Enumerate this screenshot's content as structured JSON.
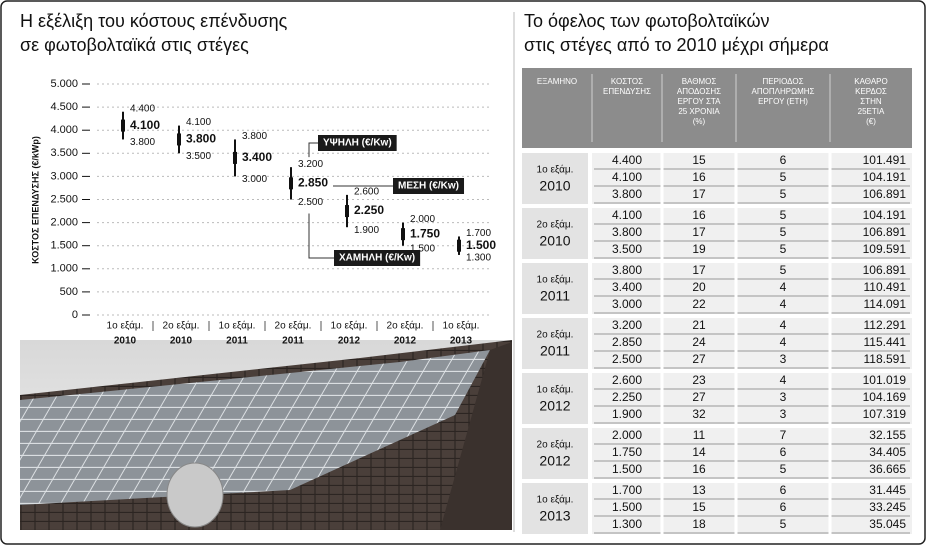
{
  "chart_data": {
    "type": "range",
    "title": [
      "Η εξέλιξη του κόστους επένδυσης",
      "σε φωτοβολταϊκά στις στέγες"
    ],
    "y_label": "ΚΟΣΤΟΣ ΕΠΕΝΔΥΣΗΣ (€/kWp)",
    "categories": [
      [
        "1ο εξάμ.",
        "2010"
      ],
      [
        "2ο εξάμ.",
        "2010"
      ],
      [
        "1ο εξάμ.",
        "2011"
      ],
      [
        "2ο εξάμ.",
        "2011"
      ],
      [
        "1ο εξάμ.",
        "2012"
      ],
      [
        "2ο εξάμ.",
        "2012"
      ],
      [
        "1ο εξάμ.",
        "2013"
      ]
    ],
    "series": [
      {
        "name": "ΥΨΗΛΗ (€/Kw)",
        "color": "#111111",
        "values": [
          4400,
          4100,
          3800,
          3200,
          2600,
          2000,
          1700
        ],
        "value_labels": [
          "4.400",
          "4.100",
          "3.800",
          "3.200",
          "2.600",
          "2.000",
          "1.700"
        ]
      },
      {
        "name": "ΜΕΣΗ (€/Kw)",
        "color": "#111111",
        "values": [
          4100,
          3800,
          3400,
          2850,
          2250,
          1750,
          1500
        ],
        "value_labels": [
          "4.100",
          "3.800",
          "3.400",
          "2.850",
          "2.250",
          "1.750",
          "1.500"
        ]
      },
      {
        "name": "ΧΑΜΗΛΗ (€/Kw)",
        "color": "#111111",
        "values": [
          3800,
          3500,
          3000,
          2500,
          1900,
          1500,
          1300
        ],
        "value_labels": [
          "3.800",
          "3.500",
          "3.000",
          "2.500",
          "1.900",
          "1.500",
          "1.300"
        ]
      }
    ],
    "ylim": [
      0,
      5000
    ],
    "yticks": [
      0,
      {
        "value": 500,
        "label": "500"
      },
      {
        "value": 1000,
        "label": "1.000"
      },
      {
        "value": 1500,
        "label": "1.500"
      },
      {
        "value": 2000,
        "label": "2.000"
      },
      {
        "value": 2500,
        "label": "2.500"
      },
      {
        "value": 3000,
        "label": "3.000"
      },
      {
        "value": 3500,
        "label": "3.500"
      },
      {
        "value": 4000,
        "label": "4.000"
      },
      {
        "value": 4500,
        "label": "4.500"
      },
      {
        "value": 5000,
        "label": "5.000"
      }
    ],
    "grid": true
  },
  "table": {
    "title": [
      "Το όφελος των φωτοβολταϊκών",
      "στις στέγες από το 2010 μέχρι σήμερα"
    ],
    "headers": [
      [
        "ΕΞΑΜΗΝΟ"
      ],
      [
        "ΚΟΣΤΟΣ",
        "ΕΠΕΝΔΥΣΗΣ"
      ],
      [
        "ΒΑΘΜΟΣ",
        "ΑΠΟΔΟΣΗΣ",
        "ΕΡΓΟΥ ΣΤΑ",
        "25 ΧΡΟΝΙΑ",
        "(%)"
      ],
      [
        "ΠΕΡΙΟΔΟΣ",
        "ΑΠΟΠΛΗΡΩΜΗΣ",
        "ΕΡΓΟΥ (ΕΤΗ)"
      ],
      [
        "ΚΑΘΑΡΟ",
        "ΚΕΡΔΟΣ",
        "ΣΤΗΝ",
        "25ΕΤΙΑ",
        "(€)"
      ]
    ],
    "groups": [
      {
        "label": [
          "1ο εξάμ.",
          "2010"
        ],
        "rows": [
          [
            "4.400",
            "15",
            "6",
            "101.491"
          ],
          [
            "4.100",
            "16",
            "5",
            "104.191"
          ],
          [
            "3.800",
            "17",
            "5",
            "106.891"
          ]
        ]
      },
      {
        "label": [
          "2ο εξάμ.",
          "2010"
        ],
        "rows": [
          [
            "4.100",
            "16",
            "5",
            "104.191"
          ],
          [
            "3.800",
            "17",
            "5",
            "106.891"
          ],
          [
            "3.500",
            "19",
            "5",
            "109.591"
          ]
        ]
      },
      {
        "label": [
          "1ο εξάμ.",
          "2011"
        ],
        "rows": [
          [
            "3.800",
            "17",
            "5",
            "106.891"
          ],
          [
            "3.400",
            "20",
            "4",
            "110.491"
          ],
          [
            "3.000",
            "22",
            "4",
            "114.091"
          ]
        ]
      },
      {
        "label": [
          "2ο εξάμ.",
          "2011"
        ],
        "rows": [
          [
            "3.200",
            "21",
            "4",
            "112.291"
          ],
          [
            "2.850",
            "24",
            "4",
            "115.441"
          ],
          [
            "2.500",
            "27",
            "3",
            "118.591"
          ]
        ]
      },
      {
        "label": [
          "1ο εξάμ.",
          "2012"
        ],
        "rows": [
          [
            "2.600",
            "23",
            "4",
            "101.019"
          ],
          [
            "2.250",
            "27",
            "3",
            "104.169"
          ],
          [
            "1.900",
            "32",
            "3",
            "107.319"
          ]
        ]
      },
      {
        "label": [
          "2ο εξάμ.",
          "2012"
        ],
        "rows": [
          [
            "2.000",
            "11",
            "7",
            "32.155"
          ],
          [
            "1.750",
            "14",
            "6",
            "34.405"
          ],
          [
            "1.500",
            "16",
            "5",
            "36.665"
          ]
        ]
      },
      {
        "label": [
          "1ο εξάμ.",
          "2013"
        ],
        "rows": [
          [
            "1.700",
            "13",
            "6",
            "31.445"
          ],
          [
            "1.500",
            "15",
            "6",
            "33.245"
          ],
          [
            "1.300",
            "18",
            "5",
            "35.045"
          ]
        ]
      }
    ]
  }
}
